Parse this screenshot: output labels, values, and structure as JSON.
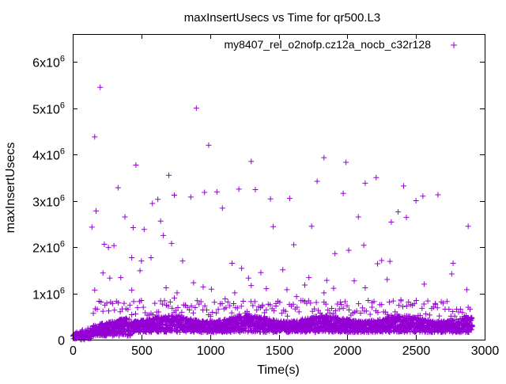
{
  "chart_data": {
    "type": "scatter",
    "title": "maxInsertUsecs vs Time for qr500.L3",
    "xlabel": "Time(s)",
    "ylabel": "maxInsertUsecs",
    "xlim": [
      0,
      3000
    ],
    "ylim": [
      0,
      6600000
    ],
    "x_ticks": [
      {
        "value": 0,
        "label": "0"
      },
      {
        "value": 500,
        "label": "500"
      },
      {
        "value": 1000,
        "label": "1000"
      },
      {
        "value": 1500,
        "label": "1500"
      },
      {
        "value": 2000,
        "label": "2000"
      },
      {
        "value": 2500,
        "label": "2500"
      },
      {
        "value": 3000,
        "label": "3000"
      }
    ],
    "y_ticks": [
      {
        "value": 0,
        "base": "0",
        "exp": ""
      },
      {
        "value": 1000000,
        "base": "1x10",
        "exp": "6"
      },
      {
        "value": 2000000,
        "base": "2x10",
        "exp": "6"
      },
      {
        "value": 3000000,
        "base": "3x10",
        "exp": "6"
      },
      {
        "value": 4000000,
        "base": "4x10",
        "exp": "6"
      },
      {
        "value": 5000000,
        "base": "5x10",
        "exp": "6"
      },
      {
        "value": 6000000,
        "base": "6x10",
        "exp": "6"
      }
    ],
    "grid": false,
    "legend_position": "top-right",
    "marker": "plus",
    "series": [
      {
        "name": "my8407_rel_o2nofp.cz12a_nocb_c32r128",
        "color": "#9400d3",
        "outliers": [
          [
            160,
            4380000
          ],
          [
            200,
            5450000
          ],
          [
            900,
            5000000
          ],
          [
            990,
            4200000
          ],
          [
            1830,
            3930000
          ],
          [
            1990,
            3830000
          ],
          [
            1300,
            3850000
          ],
          [
            460,
            3770000
          ],
          [
            700,
            3550000
          ],
          [
            2130,
            3380000
          ],
          [
            2210,
            3500000
          ],
          [
            2410,
            3320000
          ],
          [
            2660,
            3130000
          ],
          [
            330,
            3280000
          ],
          [
            960,
            3180000
          ],
          [
            1210,
            3250000
          ],
          [
            1330,
            3240000
          ],
          [
            1580,
            3050000
          ],
          [
            1970,
            3160000
          ],
          [
            1780,
            3420000
          ],
          [
            620,
            3030000
          ],
          [
            740,
            3120000
          ],
          [
            1440,
            3040000
          ],
          [
            2550,
            3100000
          ],
          [
            580,
            2940000
          ],
          [
            860,
            3080000
          ],
          [
            1050,
            3190000
          ],
          [
            2080,
            2650000
          ],
          [
            2320,
            2540000
          ],
          [
            2500,
            3000000
          ],
          [
            170,
            2780000
          ],
          [
            140,
            2430000
          ],
          [
            380,
            2650000
          ],
          [
            640,
            2560000
          ],
          [
            1090,
            2840000
          ],
          [
            1460,
            2440000
          ],
          [
            1610,
            2050000
          ],
          [
            2370,
            2760000
          ],
          [
            2430,
            2640000
          ],
          [
            2880,
            2450000
          ],
          [
            230,
            2060000
          ],
          [
            300,
            2030000
          ],
          [
            440,
            2420000
          ],
          [
            660,
            2250000
          ],
          [
            520,
            2380000
          ],
          [
            720,
            2080000
          ],
          [
            2120,
            2040000
          ],
          [
            1740,
            2450000
          ],
          [
            260,
            1990000
          ],
          [
            430,
            1770000
          ],
          [
            500,
            1700000
          ],
          [
            570,
            1770000
          ],
          [
            800,
            1700000
          ],
          [
            1160,
            1650000
          ],
          [
            2220,
            1640000
          ],
          [
            2770,
            1650000
          ],
          [
            220,
            1440000
          ],
          [
            270,
            1330000
          ],
          [
            350,
            1340000
          ],
          [
            490,
            1490000
          ],
          [
            1230,
            1540000
          ],
          [
            1280,
            1330000
          ],
          [
            1370,
            1450000
          ],
          [
            1530,
            1510000
          ],
          [
            1910,
            1860000
          ],
          [
            2010,
            1930000
          ],
          [
            2250,
            1710000
          ],
          [
            2310,
            1690000
          ],
          [
            160,
            1070000
          ],
          [
            430,
            1070000
          ],
          [
            680,
            1120000
          ],
          [
            760,
            1010000
          ],
          [
            880,
            1230000
          ],
          [
            950,
            1140000
          ],
          [
            1010,
            1090000
          ],
          [
            1180,
            1010000
          ],
          [
            1300,
            1170000
          ],
          [
            1410,
            1100000
          ],
          [
            1560,
            1080000
          ],
          [
            1690,
            1180000
          ],
          [
            1720,
            1340000
          ],
          [
            1830,
            1010000
          ],
          [
            1850,
            1280000
          ],
          [
            1900,
            1110000
          ],
          [
            2050,
            1270000
          ],
          [
            2130,
            1120000
          ],
          [
            2290,
            1300000
          ],
          [
            2560,
            1200000
          ],
          [
            2760,
            1420000
          ],
          [
            2870,
            1080000
          ],
          [
            740,
            900000
          ],
          [
            1110,
            880000
          ],
          [
            1480,
            780000
          ],
          [
            1630,
            930000
          ],
          [
            1950,
            810000
          ],
          [
            2390,
            860000
          ],
          [
            2640,
            780000
          ],
          [
            820,
            740000
          ],
          [
            1380,
            720000
          ],
          [
            2180,
            700000
          ]
        ]
      }
    ]
  }
}
